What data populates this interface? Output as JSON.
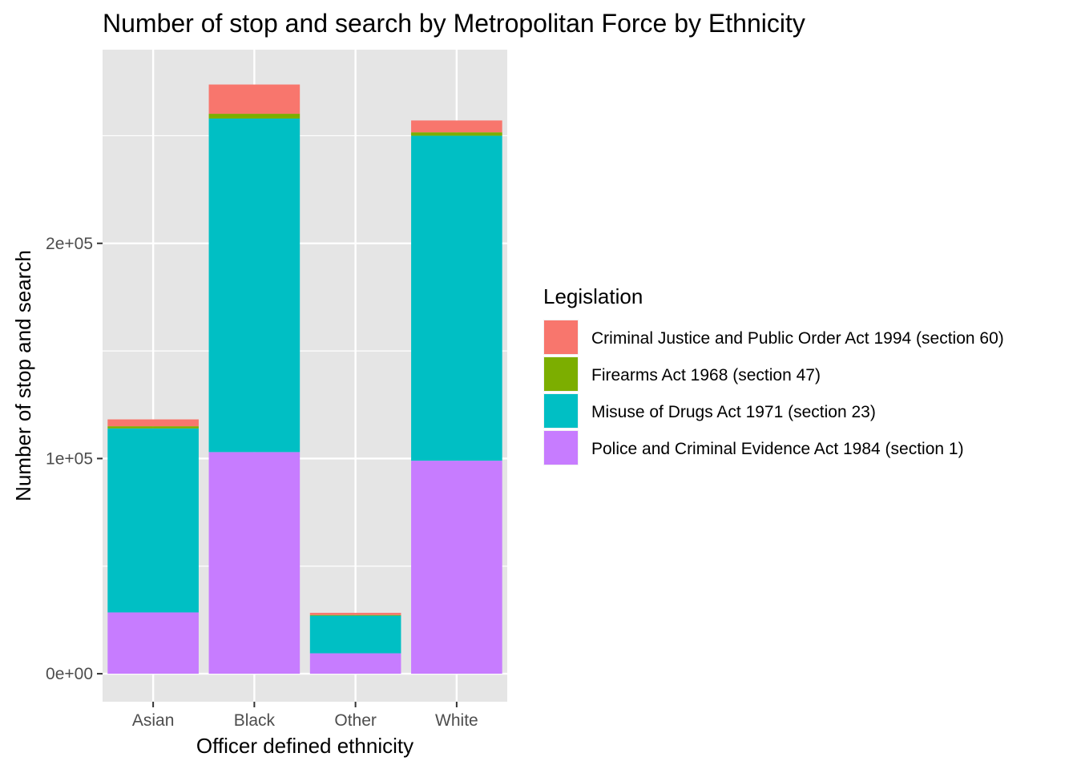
{
  "chart_data": {
    "type": "bar",
    "stacked": true,
    "title": "Number of stop and search by Metropolitan Force by Ethnicity",
    "xlabel": "Officer defined ethnicity",
    "ylabel": "Number of stop and search",
    "categories": [
      "Asian",
      "Black",
      "Other",
      "White"
    ],
    "ylim": [
      -13000,
      290000
    ],
    "yticks": [
      0,
      100000,
      200000
    ],
    "ytick_labels": [
      "0e+00",
      "1e+05",
      "2e+05"
    ],
    "y_minor_gridlines": [
      50000,
      150000,
      250000
    ],
    "grid": true,
    "legend": {
      "title": "Legislation",
      "position": "right"
    },
    "series": [
      {
        "name": "Police and Criminal Evidence Act 1984 (section 1)",
        "color": "#C77CFF",
        "values": [
          28500,
          103000,
          9500,
          99000
        ]
      },
      {
        "name": "Misuse of Drugs Act 1971 (section 23)",
        "color": "#00BFC4",
        "values": [
          85500,
          155000,
          17500,
          151000
        ]
      },
      {
        "name": "Firearms Act 1968 (section 47)",
        "color": "#7CAE00",
        "values": [
          1000,
          2200,
          300,
          1600
        ]
      },
      {
        "name": "Criminal Justice and Public Order Act 1994 (section 60)",
        "color": "#F8766D",
        "values": [
          3200,
          13600,
          1000,
          5500
        ]
      }
    ],
    "legend_order": [
      "Criminal Justice and Public Order Act 1994 (section 60)",
      "Firearms Act 1968 (section 47)",
      "Misuse of Drugs Act 1971 (section 23)",
      "Police and Criminal Evidence Act 1984 (section 1)"
    ],
    "panel_background": "#E5E5E5",
    "gridline_color": "#FFFFFF"
  }
}
